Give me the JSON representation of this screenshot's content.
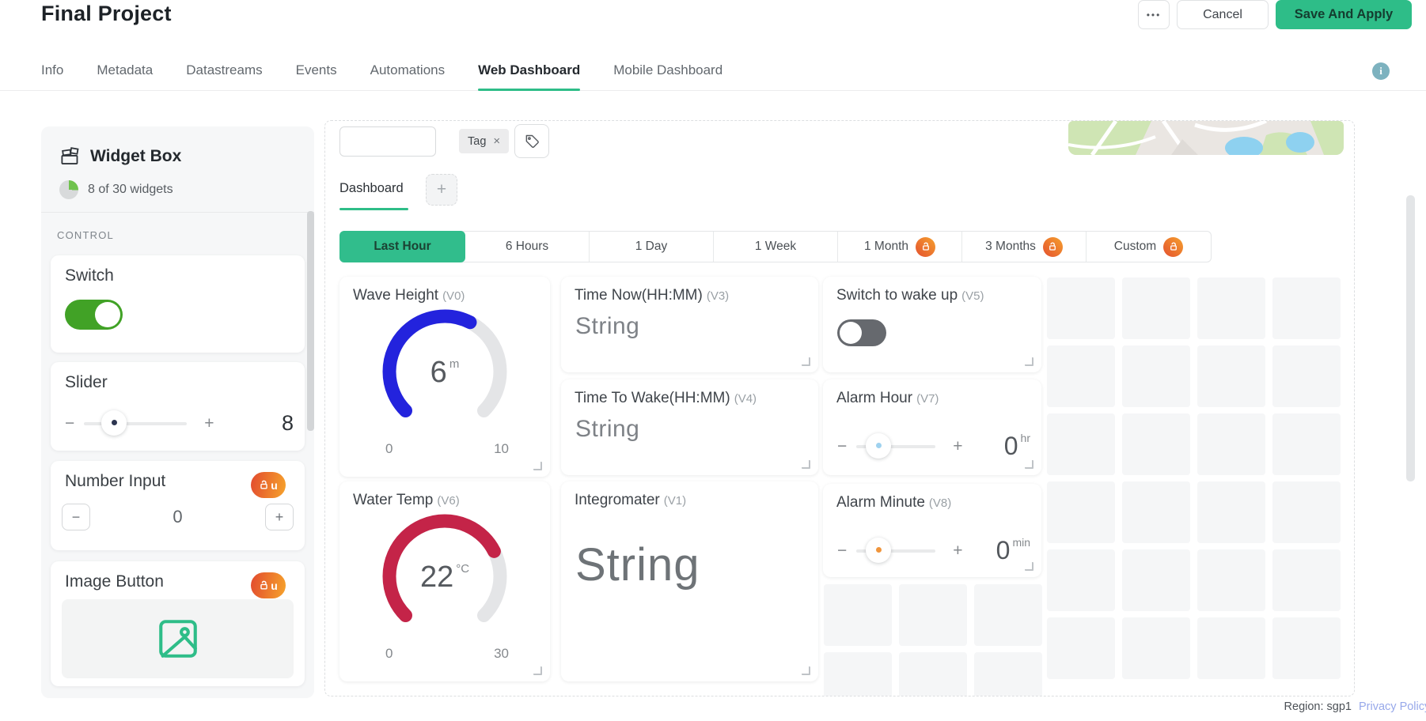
{
  "header": {
    "title": "Final Project",
    "more_button": "•••",
    "cancel_button": "Cancel",
    "save_button": "Save And Apply"
  },
  "nav_tabs": {
    "items": [
      "Info",
      "Metadata",
      "Datastreams",
      "Events",
      "Automations",
      "Web Dashboard",
      "Mobile Dashboard"
    ],
    "active": "Web Dashboard"
  },
  "widget_box": {
    "title": "Widget Box",
    "usage": "8 of 30 widgets",
    "section_label": "CONTROL",
    "upgrade_badge_text": "u",
    "switch_widget": {
      "title": "Switch",
      "state": "on"
    },
    "slider_widget": {
      "title": "Slider",
      "value": "8",
      "minus": "−",
      "plus": "+"
    },
    "number_input_widget": {
      "title": "Number Input",
      "value": "0",
      "minus": "−",
      "plus": "+",
      "locked": true
    },
    "image_button_widget": {
      "title": "Image Button",
      "locked": true
    }
  },
  "canvas": {
    "search_value": "",
    "tag_chip": {
      "label": "Tag",
      "close": "×"
    },
    "dashboard_tab": "Dashboard",
    "add_tab": "+",
    "time_ranges": [
      {
        "label": "Last Hour",
        "active": true,
        "locked": false
      },
      {
        "label": "6 Hours",
        "active": false,
        "locked": false
      },
      {
        "label": "1 Day",
        "active": false,
        "locked": false
      },
      {
        "label": "1 Week",
        "active": false,
        "locked": false
      },
      {
        "label": "1 Month",
        "active": false,
        "locked": true
      },
      {
        "label": "3 Months",
        "active": false,
        "locked": true
      },
      {
        "label": "Custom",
        "active": false,
        "locked": true
      }
    ],
    "widgets": {
      "wave_height": {
        "title": "Wave Height",
        "pin": "(V0)",
        "type": "gauge",
        "value": 6,
        "unit": "m",
        "min": 0,
        "max": 10,
        "color": "#2323dd"
      },
      "time_now": {
        "title": "Time Now(HH:MM)",
        "pin": "(V3)",
        "type": "label",
        "value": "String"
      },
      "switch_wake": {
        "title": "Switch to wake up",
        "pin": "(V5)",
        "type": "switch",
        "state": "off"
      },
      "time_to_wake": {
        "title": "Time To Wake(HH:MM)",
        "pin": "(V4)",
        "type": "label",
        "value": "String"
      },
      "alarm_hour": {
        "title": "Alarm Hour",
        "pin": "(V7)",
        "type": "slider",
        "value": 0,
        "unit": "hr",
        "minus": "−",
        "plus": "+"
      },
      "water_temp": {
        "title": "Water Temp",
        "pin": "(V6)",
        "type": "gauge",
        "value": 22,
        "unit": "°C",
        "min": 0,
        "max": 30,
        "color": "#c42448"
      },
      "integromater": {
        "title": "Integromater",
        "pin": "(V1)",
        "type": "label",
        "value": "String"
      },
      "alarm_minute": {
        "title": "Alarm Minute",
        "pin": "(V8)",
        "type": "slider",
        "value": 0,
        "unit": "min",
        "minus": "−",
        "plus": "+"
      }
    }
  },
  "footer": {
    "region": "Region: sgp1",
    "privacy_link": "Privacy Policy"
  },
  "colors": {
    "accent_green": "#2ebd88",
    "switch_on_green": "#41a226",
    "toggle_off_gray": "#66696e",
    "gauge_blue": "#2323dd",
    "gauge_red": "#c42448",
    "lock_badge_gradient": [
      "#e24a2e",
      "#f6a42c"
    ],
    "slider_dot_sidebar": "#2c3550",
    "slider_dot_hour": "#9fd2ef",
    "slider_dot_minute": "#f0953c",
    "image_icon_green": "#2ebd88",
    "info_icon_teal": "#7db2bf",
    "privacy_link_color": "#97a8ea",
    "empty_cell_gray": "#f5f6f7"
  }
}
